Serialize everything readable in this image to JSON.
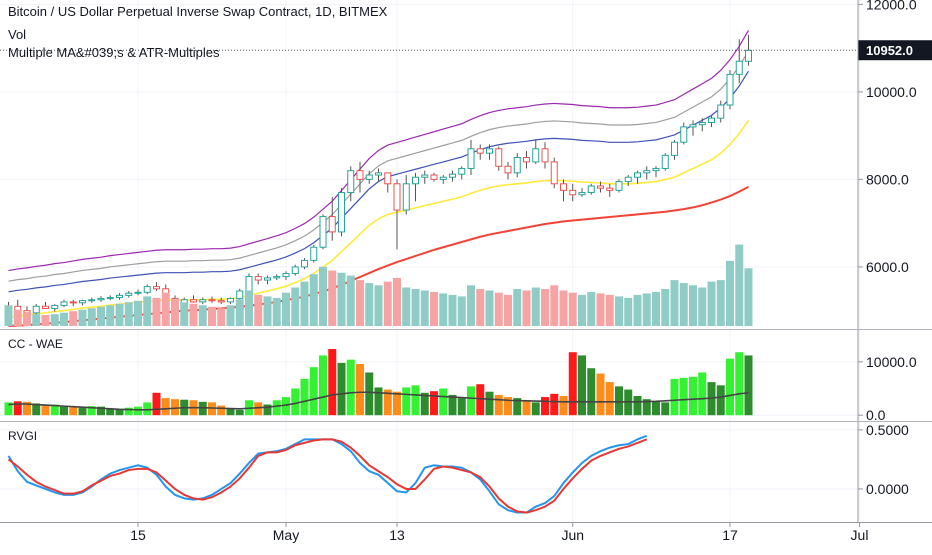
{
  "header": {
    "title": "Bitcoin / US Dollar Perpetual Inverse Swap Contract, 1D, BITMEX",
    "study_vol": "Vol",
    "study_ma": "Multiple MA&#039;s & ATR-Multiples"
  },
  "price_badge": "10952.0",
  "panes": {
    "wae": "CC - WAE",
    "rvgi": "RVGI"
  },
  "colors": {
    "up": "#26a69a",
    "down": "#ef5350",
    "ma_fast": "#ffeb3b",
    "ma_slow": "#f44336",
    "atr1": "#3f51b5",
    "atr2": "#9e9e9e",
    "atr3": "#9c27b0",
    "wae_bright_green": "#32f232",
    "wae_dark_green": "#2e8b2e",
    "wae_red": "#ff1a1a",
    "wae_orange": "#ff8c1a",
    "rvgi_blue": "#2196f3",
    "rvgi_red": "#e53935",
    "vol_up": "#8fccc6",
    "vol_down": "#f5a3a3"
  },
  "chart_data": [
    {
      "type": "candlestick",
      "pane": "price",
      "y_ticks": [
        "12000.0",
        "10000.0",
        "8000.0",
        "6000.0"
      ],
      "y_tick_values": [
        12000,
        10000,
        8000,
        6000
      ],
      "ylim": [
        4650,
        12100
      ],
      "last_price": 10952,
      "x_ticks": [
        "15",
        "May",
        "13",
        "Jun",
        "17",
        "Jul"
      ],
      "x_tick_index": [
        14,
        30,
        42,
        61,
        78,
        92
      ],
      "candles": [
        [
          5050,
          5200,
          4950,
          5100
        ],
        [
          5100,
          5250,
          5000,
          5000
        ],
        [
          5000,
          5100,
          4900,
          4950
        ],
        [
          4950,
          5150,
          4900,
          5100
        ],
        [
          5100,
          5200,
          5050,
          5050
        ],
        [
          5050,
          5150,
          4980,
          5120
        ],
        [
          5120,
          5250,
          5080,
          5200
        ],
        [
          5200,
          5250,
          5100,
          5180
        ],
        [
          5180,
          5250,
          5120,
          5230
        ],
        [
          5230,
          5300,
          5180,
          5250
        ],
        [
          5250,
          5330,
          5200,
          5280
        ],
        [
          5280,
          5350,
          5240,
          5300
        ],
        [
          5300,
          5400,
          5250,
          5350
        ],
        [
          5350,
          5450,
          5300,
          5400
        ],
        [
          5400,
          5480,
          5350,
          5420
        ],
        [
          5420,
          5600,
          5380,
          5550
        ],
        [
          5550,
          5650,
          5450,
          5500
        ],
        [
          5500,
          5600,
          5200,
          5280
        ],
        [
          5280,
          5350,
          4900,
          5100
        ],
        [
          5100,
          5300,
          5050,
          5250
        ],
        [
          5250,
          5350,
          5180,
          5200
        ],
        [
          5200,
          5300,
          5150,
          5250
        ],
        [
          5250,
          5320,
          5180,
          5230
        ],
        [
          5230,
          5300,
          5150,
          5200
        ],
        [
          5200,
          5300,
          5150,
          5280
        ],
        [
          5280,
          5500,
          5250,
          5450
        ],
        [
          5450,
          5850,
          5400,
          5780
        ],
        [
          5780,
          5850,
          5600,
          5700
        ],
        [
          5700,
          5800,
          5600,
          5750
        ],
        [
          5750,
          5830,
          5700,
          5780
        ],
        [
          5780,
          5900,
          5700,
          5850
        ],
        [
          5850,
          6050,
          5800,
          6000
        ],
        [
          6000,
          6200,
          5950,
          6150
        ],
        [
          6150,
          6500,
          6100,
          6450
        ],
        [
          6450,
          7200,
          6400,
          7150
        ],
        [
          7150,
          7600,
          6600,
          6800
        ],
        [
          6800,
          7800,
          6700,
          7700
        ],
        [
          7700,
          8300,
          7500,
          8200
        ],
        [
          8200,
          8400,
          7700,
          8000
        ],
        [
          8000,
          8200,
          7900,
          8100
        ],
        [
          8100,
          8250,
          7950,
          8150
        ],
        [
          8150,
          8100,
          7700,
          7900
        ],
        [
          7900,
          8000,
          6400,
          7300
        ],
        [
          7300,
          8100,
          7200,
          7900
        ],
        [
          7900,
          8150,
          7500,
          8050
        ],
        [
          8050,
          8200,
          7900,
          8100
        ],
        [
          8100,
          8150,
          7950,
          8000
        ],
        [
          8000,
          8100,
          7900,
          8050
        ],
        [
          8050,
          8200,
          7950,
          8120
        ],
        [
          8120,
          8300,
          8000,
          8250
        ],
        [
          8250,
          8900,
          8100,
          8700
        ],
        [
          8700,
          8800,
          8450,
          8600
        ],
        [
          8600,
          8800,
          8450,
          8700
        ],
        [
          8700,
          8750,
          8200,
          8300
        ],
        [
          8300,
          8400,
          8000,
          8150
        ],
        [
          8150,
          8600,
          8050,
          8500
        ],
        [
          8500,
          8650,
          8250,
          8400
        ],
        [
          8400,
          8900,
          8350,
          8700
        ],
        [
          8700,
          8850,
          8250,
          8400
        ],
        [
          8400,
          8500,
          7800,
          7900
        ],
        [
          7900,
          8000,
          7500,
          7750
        ],
        [
          7750,
          7900,
          7500,
          7650
        ],
        [
          7650,
          7800,
          7600,
          7700
        ],
        [
          7700,
          7900,
          7650,
          7850
        ],
        [
          7850,
          7950,
          7700,
          7800
        ],
        [
          7800,
          7900,
          7600,
          7750
        ],
        [
          7750,
          8000,
          7700,
          7950
        ],
        [
          7950,
          8100,
          7850,
          8050
        ],
        [
          8050,
          8200,
          7900,
          8150
        ],
        [
          8150,
          8300,
          8000,
          8200
        ],
        [
          8200,
          8300,
          8050,
          8250
        ],
        [
          8250,
          8600,
          8200,
          8550
        ],
        [
          8550,
          8900,
          8450,
          8850
        ],
        [
          8850,
          9300,
          8800,
          9200
        ],
        [
          9200,
          9350,
          9000,
          9250
        ],
        [
          9250,
          9400,
          9100,
          9300
        ],
        [
          9300,
          9450,
          9200,
          9400
        ],
        [
          9400,
          9800,
          9300,
          9700
        ],
        [
          9700,
          10500,
          9600,
          10400
        ],
        [
          10400,
          11200,
          10200,
          10700
        ],
        [
          10700,
          11300,
          10600,
          10950
        ]
      ],
      "ma_fast": [
        4850,
        4880,
        4900,
        4930,
        4950,
        4980,
        5000,
        5030,
        5060,
        5080,
        5100,
        5130,
        5150,
        5170,
        5190,
        5210,
        5230,
        5240,
        5240,
        5240,
        5250,
        5250,
        5260,
        5260,
        5270,
        5300,
        5350,
        5400,
        5450,
        5500,
        5560,
        5640,
        5730,
        5850,
        6000,
        6150,
        6350,
        6550,
        6750,
        6950,
        7100,
        7200,
        7250,
        7300,
        7350,
        7400,
        7450,
        7500,
        7550,
        7600,
        7680,
        7750,
        7810,
        7850,
        7880,
        7900,
        7920,
        7950,
        7970,
        7980,
        7970,
        7960,
        7940,
        7930,
        7920,
        7900,
        7900,
        7900,
        7910,
        7930,
        7950,
        8000,
        8050,
        8150,
        8250,
        8350,
        8450,
        8600,
        8800,
        9050,
        9350
      ],
      "ma_slow": [
        4650,
        4660,
        4670,
        4690,
        4700,
        4720,
        4740,
        4760,
        4780,
        4800,
        4820,
        4840,
        4860,
        4880,
        4900,
        4920,
        4940,
        4960,
        4980,
        5000,
        5010,
        5020,
        5040,
        5050,
        5070,
        5090,
        5110,
        5140,
        5170,
        5200,
        5240,
        5280,
        5320,
        5380,
        5440,
        5510,
        5590,
        5680,
        5770,
        5860,
        5950,
        6030,
        6110,
        6180,
        6250,
        6320,
        6390,
        6450,
        6510,
        6570,
        6630,
        6690,
        6740,
        6780,
        6820,
        6860,
        6900,
        6940,
        6980,
        7010,
        7040,
        7060,
        7080,
        7100,
        7120,
        7140,
        7160,
        7180,
        7200,
        7220,
        7240,
        7260,
        7290,
        7320,
        7360,
        7410,
        7470,
        7540,
        7620,
        7720,
        7830
      ]
    },
    {
      "type": "bar",
      "pane": "volume",
      "values": [
        28,
        22,
        18,
        16,
        15,
        16,
        18,
        20,
        22,
        24,
        26,
        28,
        30,
        32,
        34,
        40,
        38,
        45,
        36,
        32,
        30,
        28,
        26,
        24,
        28,
        36,
        48,
        42,
        40,
        38,
        45,
        52,
        60,
        70,
        80,
        75,
        72,
        68,
        62,
        58,
        55,
        60,
        65,
        52,
        50,
        48,
        46,
        44,
        42,
        40,
        55,
        50,
        48,
        45,
        42,
        50,
        48,
        52,
        50,
        55,
        48,
        45,
        42,
        46,
        44,
        42,
        40,
        38,
        42,
        44,
        46,
        50,
        62,
        58,
        55,
        52,
        60,
        62,
        88,
        110,
        78
      ]
    },
    {
      "type": "bar",
      "pane": "wae",
      "y_ticks": [
        "10000.0",
        "0.0"
      ],
      "y_tick_values": [
        10000,
        0
      ],
      "ylim": [
        -900,
        15400
      ],
      "values": [
        2400,
        2600,
        2500,
        2200,
        1800,
        2000,
        1600,
        1500,
        1400,
        1700,
        1600,
        1200,
        1000,
        1400,
        1600,
        2400,
        4200,
        3200,
        3000,
        2900,
        2800,
        2500,
        2400,
        1800,
        1200,
        1000,
        2800,
        2400,
        2000,
        2800,
        3400,
        5000,
        6800,
        9000,
        11200,
        12400,
        9800,
        10400,
        9600,
        8000,
        5200,
        4800,
        4400,
        5200,
        5600,
        4200,
        4500,
        5000,
        3800,
        3200,
        5400,
        5800,
        4400,
        3800,
        3400,
        3200,
        2800,
        2400,
        3400,
        4000,
        3600,
        11800,
        11200,
        8800,
        7800,
        6200,
        5400,
        4800,
        3600,
        3000,
        2600,
        2400,
        6800,
        7000,
        7200,
        8000,
        6200,
        5600,
        10600,
        11800,
        11200
      ],
      "signal": [
        2000,
        2100,
        2100,
        2000,
        1900,
        1800,
        1700,
        1600,
        1500,
        1400,
        1300,
        1200,
        1100,
        1050,
        1000,
        1000,
        1100,
        1200,
        1300,
        1400,
        1400,
        1400,
        1350,
        1300,
        1250,
        1200,
        1300,
        1400,
        1500,
        1700,
        1900,
        2200,
        2600,
        3000,
        3400,
        3800,
        4000,
        4200,
        4300,
        4300,
        4200,
        4100,
        4000,
        3900,
        3800,
        3700,
        3600,
        3500,
        3400,
        3300,
        3200,
        3100,
        3000,
        2900,
        2800,
        2750,
        2700,
        2650,
        2600,
        2550,
        2500,
        2500,
        2500,
        2500,
        2500,
        2500,
        2500,
        2500,
        2500,
        2550,
        2600,
        2700,
        2800,
        2900,
        3000,
        3100,
        3200,
        3400,
        3700,
        4000,
        4200
      ]
    },
    {
      "type": "line",
      "pane": "rvgi",
      "y_ticks": [
        "0.5000",
        "0.0000"
      ],
      "y_tick_values": [
        0.5,
        0
      ],
      "ylim": [
        -0.28,
        0.55
      ],
      "series": [
        {
          "values": [
            0.28,
            0.15,
            0.06,
            0.03,
            0.0,
            -0.03,
            -0.05,
            -0.05,
            -0.03,
            0.02,
            0.08,
            0.13,
            0.16,
            0.18,
            0.2,
            0.18,
            0.12,
            0.02,
            -0.05,
            -0.08,
            -0.09,
            -0.08,
            -0.05,
            0.0,
            0.05,
            0.13,
            0.22,
            0.3,
            0.31,
            0.32,
            0.34,
            0.38,
            0.42,
            0.42,
            0.42,
            0.42,
            0.38,
            0.32,
            0.22,
            0.15,
            0.12,
            0.05,
            -0.02,
            -0.03,
            0.05,
            0.18,
            0.2,
            0.19,
            0.19,
            0.18,
            0.14,
            0.08,
            -0.02,
            -0.13,
            -0.18,
            -0.2,
            -0.2,
            -0.15,
            -0.12,
            -0.06,
            0.05,
            0.14,
            0.22,
            0.28,
            0.32,
            0.35,
            0.37,
            0.38,
            0.42,
            0.45
          ]
        },
        {
          "values": [
            0.25,
            0.19,
            0.12,
            0.06,
            0.02,
            -0.01,
            -0.04,
            -0.04,
            -0.02,
            0.03,
            0.07,
            0.11,
            0.13,
            0.16,
            0.17,
            0.17,
            0.14,
            0.07,
            0.0,
            -0.05,
            -0.08,
            -0.09,
            -0.07,
            -0.03,
            0.02,
            0.09,
            0.18,
            0.28,
            0.31,
            0.31,
            0.33,
            0.37,
            0.39,
            0.41,
            0.42,
            0.42,
            0.4,
            0.35,
            0.28,
            0.2,
            0.15,
            0.1,
            0.04,
            0.0,
            0.0,
            0.08,
            0.17,
            0.19,
            0.18,
            0.16,
            0.14,
            0.1,
            0.02,
            -0.08,
            -0.15,
            -0.19,
            -0.2,
            -0.18,
            -0.15,
            -0.1,
            0.0,
            0.09,
            0.17,
            0.24,
            0.28,
            0.31,
            0.34,
            0.36,
            0.39,
            0.42
          ]
        }
      ]
    }
  ]
}
